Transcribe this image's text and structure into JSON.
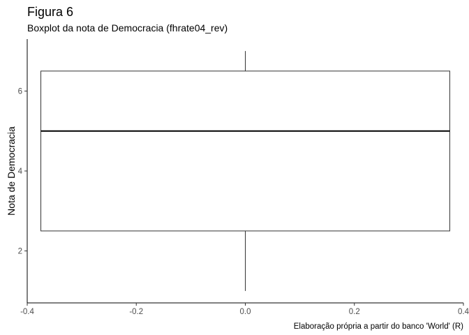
{
  "chart_data": {
    "type": "boxplot",
    "title": "Figura 6",
    "subtitle": "Boxplot da nota de Democracia (fhrate04_rev)",
    "ylabel": "Nota de Democracia",
    "xlabel": "",
    "caption": "Elaboração própria a partir do banco 'World' (R)",
    "xlim": [
      -0.4,
      0.4
    ],
    "ylim": [
      0.7,
      7.3
    ],
    "x_ticks": [
      "-0.4",
      "-0.2",
      "0.0",
      "0.2",
      "0.4"
    ],
    "y_ticks": [
      "2",
      "4",
      "6"
    ],
    "grid": false,
    "box": {
      "x_center": 0,
      "x_from": -0.375,
      "x_to": 0.375,
      "whisker_low": 1.0,
      "q1": 2.5,
      "median": 5.0,
      "q3": 6.5,
      "whisker_high": 7.0
    },
    "colors": {
      "box_stroke": "#333333",
      "box_fill": "#ffffff",
      "axis": "#000000"
    }
  }
}
